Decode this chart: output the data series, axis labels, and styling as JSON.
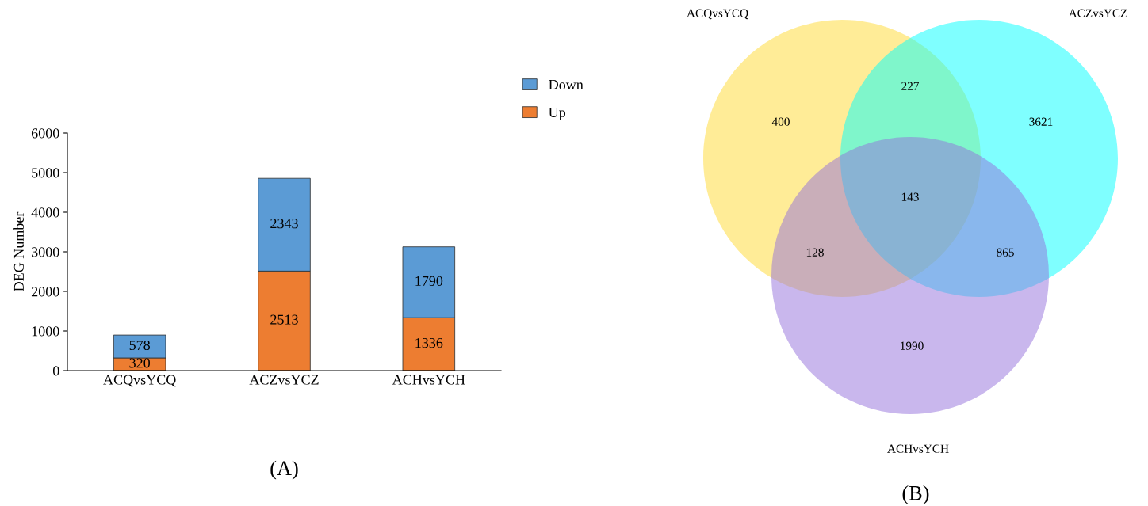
{
  "chart_data": [
    {
      "type": "bar",
      "title": "(A)",
      "ylabel": "DEG Number",
      "categories": [
        "ACQvsYCQ",
        "ACZvsYCZ",
        "ACHvsYCH"
      ],
      "stacked": true,
      "series": [
        {
          "name": "Up",
          "color": "#ed7d31",
          "values": [
            320,
            2513,
            1336
          ]
        },
        {
          "name": "Down",
          "color": "#5b9bd5",
          "values": [
            578,
            2343,
            1790
          ]
        }
      ],
      "ylim": [
        0,
        6000
      ],
      "yticks": [
        0,
        1000,
        2000,
        3000,
        4000,
        5000,
        6000
      ],
      "data_labels": true,
      "legend": "top right",
      "grid": false
    },
    {
      "type": "other",
      "title": "(B)",
      "annotations": [
        "ACQvsYCQ",
        "ACZvsYCZ",
        "ACHvsYCH",
        "400",
        "3621",
        "1990",
        "227",
        "128",
        "865",
        "143"
      ]
    }
  ]
}
